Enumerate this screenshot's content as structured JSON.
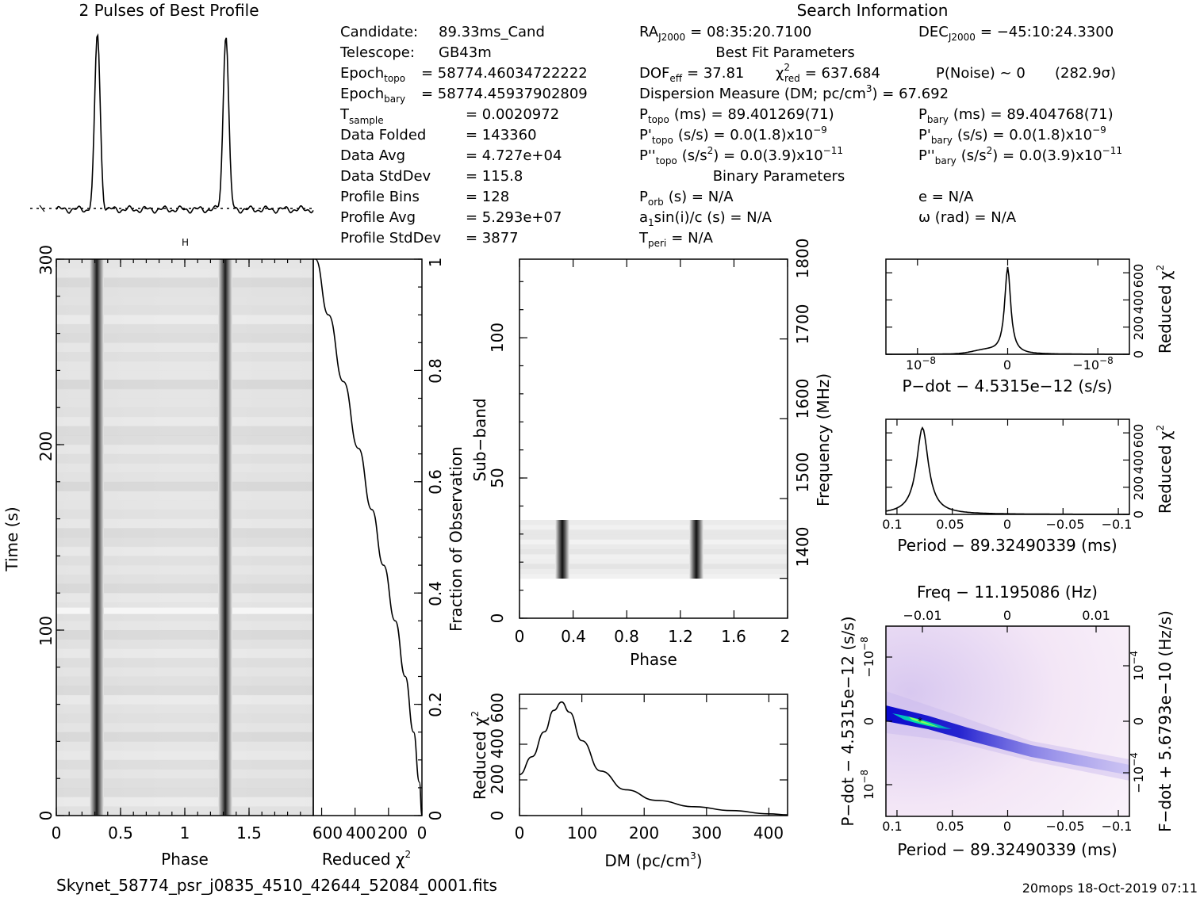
{
  "file_name": "Skynet_58774_psr_j0835_4510_42644_52084_0001.fits",
  "footer_right": "20mops 18-Oct-2019 07:11",
  "profile_title": "2 Pulses of Best Profile",
  "search_title": "Search Information",
  "info_left": [
    {
      "label": "Candidate:",
      "value": "89.33ms_Cand"
    },
    {
      "label": "Telescope:",
      "value": "GB43m"
    },
    {
      "label": "Epoch",
      "sub": "topo",
      "value": "= 58774.46034722222"
    },
    {
      "label": "Epoch",
      "sub": "bary",
      "value": "= 58774.45937902809"
    },
    {
      "label": "T",
      "sub": "sample",
      "value": "=   0.0020972"
    },
    {
      "label": "Data Folded",
      "value": "=   143360"
    },
    {
      "label": "Data Avg",
      "value": "=   4.727e+04"
    },
    {
      "label": "Data StdDev",
      "value": "=   115.8"
    },
    {
      "label": "Profile Bins",
      "value": "=   128"
    },
    {
      "label": "Profile Avg",
      "value": "=   5.293e+07"
    },
    {
      "label": "Profile StdDev",
      "value": "=   3877"
    }
  ],
  "info_mid": {
    "ra": "RA",
    "ra_sub": "J2000",
    "ra_value": "= 08:35:20.7100",
    "best_fit_header": "Best Fit Parameters",
    "dof": "DOF",
    "dof_sub": "eff",
    "dof_value": "= 37.81",
    "chi": "χ",
    "chi_sup": "2",
    "chi_sub": "red",
    "chi_value": "= 637.684",
    "pnoise": "P(Noise) ~ 0",
    "sigma": "(282.9σ)",
    "dm_line": "Dispersion Measure (DM; pc/cm",
    "dm_sup": "3",
    "dm_value": ") = 67.692",
    "ptopo_value": "(ms) =  89.401269(71)",
    "pdtopo_value": "(s/s) = 0.0(1.8)x10",
    "pdtopo_exp": "−9",
    "pddtopo_value": "(s/s",
    "pddtopo_value2": ") = 0.0(3.9)x10",
    "pddtopo_exp": "−11",
    "binary_header": "Binary Parameters",
    "porb": "(s) = N/A",
    "a1": "a",
    "a1_rest": "sin(i)/c (s) = N/A",
    "tperi": "= N/A"
  },
  "info_right": {
    "dec": "DEC",
    "dec_sub": "J2000",
    "dec_value": "= −45:10:24.3300",
    "pbary_value": "(ms) =  89.404768(71)",
    "pdbary_value": "(s/s) = 0.0(1.8)x10",
    "pdbary_exp": "−9",
    "pddbary_value": "(s/s",
    "pddbary_value2": ") = 0.0(3.9)x10",
    "pddbary_exp": "−11",
    "ecc": "e = N/A",
    "omega": "ω (rad) = N/A"
  },
  "labels": {
    "time_axis": "Time (s)",
    "phase": "Phase",
    "reduced_chi": "Reduced χ",
    "chi_sup": "2",
    "fraction_obs": "Fraction of Observation",
    "subband": "Sub−band",
    "frequency": "Frequency (MHz)",
    "dm_axis": "DM (pc/cm",
    "dm_axis_sup": "3",
    "dm_axis_end": ")",
    "pdot_axis": "P−dot − 4.5315e−12 (s/s)",
    "period_axis": "Period − 89.32490339 (ms)",
    "freq_axis": "Freq − 11.195086 (Hz)",
    "fdot_axis": "F−dot + 5.6793e−10 (Hz/s)"
  },
  "ticks": {
    "time_y": [
      "0",
      "100",
      "200",
      "300"
    ],
    "phase_x": [
      "0",
      "0.5",
      "1",
      "1.5"
    ],
    "chi_x": [
      "600",
      "400",
      "200",
      "0"
    ],
    "frac_y": [
      "0",
      "0.2",
      "0.4",
      "0.6",
      "0.8",
      "1"
    ],
    "sub_y": [
      "0",
      "50",
      "100"
    ],
    "freq_y": [
      "1400",
      "1500",
      "1600",
      "1700",
      "1800"
    ],
    "sub_x": [
      "0",
      "0.4",
      "0.8",
      "1.2",
      "1.6",
      "2"
    ],
    "dm_x": [
      "0",
      "100",
      "200",
      "300",
      "400"
    ],
    "chi_y": [
      "0",
      "200",
      "400",
      "600"
    ],
    "pdot_x": [
      "10",
      "0",
      "−10"
    ],
    "pdot_x_exp": "−8",
    "period_x": [
      "0.1",
      "0.05",
      "0",
      "−0.05",
      "−0.1"
    ],
    "freq_top": [
      "−0.01",
      "0",
      "0.01"
    ],
    "pp_left": [
      "−10",
      "0",
      "10"
    ],
    "pp_left_exp": "−8",
    "pp_right": [
      "10",
      "0",
      "−10"
    ],
    "pp_right_exp": "−4"
  },
  "colors": {
    "ink": "#000000",
    "grey_dark": "#1a1a1a",
    "pp_core": "#00cc88",
    "pp_halo": "#0000cc",
    "pp_bg": "#f6e8f6"
  },
  "chart_data": [
    {
      "type": "line",
      "title": "2 Pulses of Best Profile",
      "x": [
        0,
        0.25,
        0.3,
        0.32,
        0.34,
        0.4,
        1.0,
        1.25,
        1.3,
        1.32,
        1.34,
        1.4,
        2.0
      ],
      "y": [
        0.05,
        0.07,
        0.55,
        1.0,
        0.55,
        0.06,
        0.05,
        0.07,
        0.55,
        1.0,
        0.55,
        0.06,
        0.05
      ],
      "xlim": [
        0,
        2
      ],
      "note_values_relative": true
    },
    {
      "type": "heatmap",
      "xlabel": "Phase",
      "ylabel": "Time (s)",
      "xlim": [
        0,
        2
      ],
      "ylim": [
        0,
        300
      ],
      "pulse_phases": [
        0.32,
        1.32
      ]
    },
    {
      "type": "line",
      "xlabel": "Reduced χ2",
      "ylabel": "Fraction of Observation",
      "x": [
        637,
        560,
        470,
        380,
        300,
        230,
        160,
        100,
        50,
        15,
        0
      ],
      "y": [
        1.0,
        0.9,
        0.78,
        0.66,
        0.55,
        0.45,
        0.35,
        0.25,
        0.15,
        0.06,
        0.0
      ],
      "xlim": [
        650,
        0
      ],
      "ylim": [
        0,
        1
      ]
    },
    {
      "type": "heatmap",
      "xlabel": "Phase",
      "ylabel": "Sub−band",
      "y2label": "Frequency (MHz)",
      "xlim": [
        0,
        2
      ],
      "ylim": [
        0,
        128
      ],
      "y2lim": [
        1350,
        1800
      ],
      "filled_subbands": [
        14,
        35
      ],
      "pulse_phases": [
        0.32,
        1.32
      ]
    },
    {
      "type": "line",
      "xlabel": "DM (pc/cm3)",
      "ylabel": "Reduced χ2",
      "x": [
        0,
        20,
        40,
        55,
        67.7,
        80,
        100,
        130,
        170,
        220,
        280,
        340,
        400,
        430
      ],
      "y": [
        230,
        330,
        470,
        590,
        637,
        580,
        420,
        250,
        145,
        85,
        50,
        28,
        10,
        4
      ],
      "xlim": [
        0,
        430
      ],
      "ylim": [
        0,
        680
      ]
    },
    {
      "type": "line",
      "xlabel": "P−dot − 4.5315e−12 (s/s)",
      "ylabel": "Reduced χ2",
      "x": [
        -1.35e-08,
        -1e-08,
        -5e-09,
        -2e-09,
        -8e-10,
        0,
        8e-10,
        2e-09,
        5e-09,
        1e-08,
        1.35e-08
      ],
      "y": [
        3,
        5,
        12,
        30,
        120,
        637,
        120,
        30,
        12,
        5,
        3
      ],
      "ylim": [
        0,
        700
      ]
    },
    {
      "type": "line",
      "xlabel": "Period − 89.32490339 (ms)",
      "ylabel": "Reduced χ2",
      "x": [
        0.11,
        0.1,
        0.09,
        0.085,
        0.08,
        0.077,
        0.074,
        0.07,
        0.06,
        0.04,
        0.0,
        -0.05,
        -0.11
      ],
      "y": [
        3,
        20,
        90,
        220,
        480,
        637,
        480,
        220,
        70,
        15,
        4,
        2,
        1
      ],
      "xlim": [
        0.11,
        -0.11
      ],
      "ylim": [
        0,
        700
      ]
    },
    {
      "type": "heatmap",
      "xlabel": "Period − 89.32490339 (ms)",
      "ylabel": "P−dot − 4.5315e−12 (s/s)",
      "x2label": "Freq − 11.195086 (Hz)",
      "y2label": "F−dot + 5.6793e−10 (Hz/s)",
      "xlim": [
        0.11,
        -0.11
      ],
      "ylim": [
        1.4e-08,
        -1.4e-08
      ],
      "best": {
        "x": 0.077,
        "y": 0
      }
    }
  ]
}
